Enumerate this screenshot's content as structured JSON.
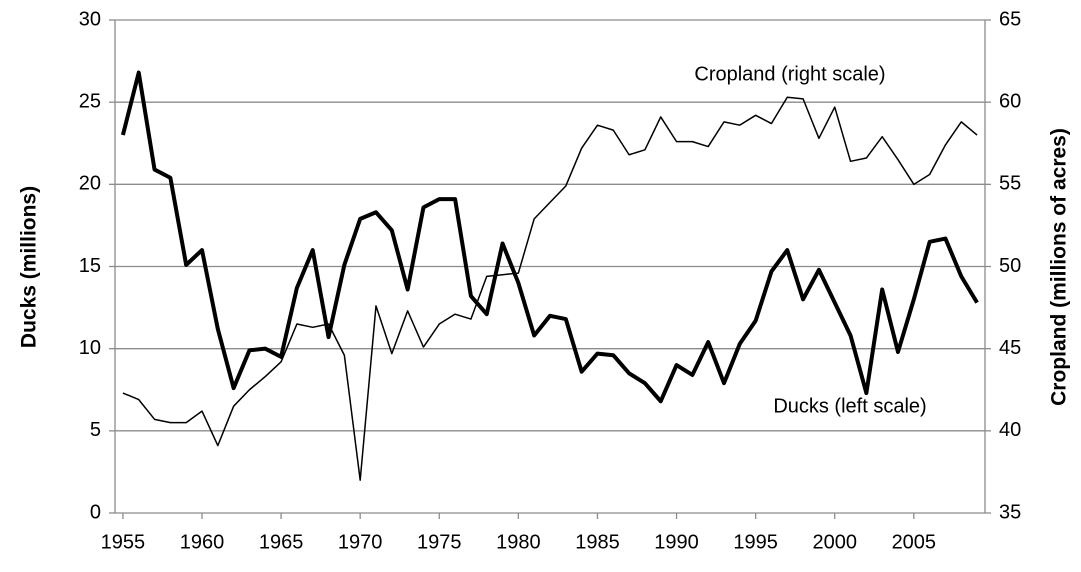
{
  "chart_data": {
    "type": "line",
    "y_label": "Ducks (millions)",
    "y2_label": "Cropland (millions of acres)",
    "annotations": [
      "Cropland (right scale)",
      "Ducks (left scale)"
    ],
    "x": [
      1955,
      1956,
      1957,
      1958,
      1959,
      1960,
      1961,
      1962,
      1963,
      1964,
      1965,
      1966,
      1967,
      1968,
      1969,
      1970,
      1971,
      1972,
      1973,
      1974,
      1975,
      1976,
      1977,
      1978,
      1979,
      1980,
      1981,
      1982,
      1983,
      1984,
      1985,
      1986,
      1987,
      1988,
      1989,
      1990,
      1991,
      1992,
      1993,
      1994,
      1995,
      1996,
      1997,
      1998,
      1999,
      2000,
      2001,
      2002,
      2003,
      2004,
      2005,
      2006,
      2007,
      2008,
      2009
    ],
    "xlim": [
      1954.5,
      2009.5
    ],
    "xticks": [
      1955,
      1960,
      1965,
      1970,
      1975,
      1980,
      1985,
      1990,
      1995,
      2000,
      2005
    ],
    "ylim": [
      0,
      30
    ],
    "yticks": [
      0,
      5,
      10,
      15,
      20,
      25,
      30
    ],
    "y2lim": [
      35,
      65
    ],
    "y2ticks": [
      35,
      40,
      45,
      50,
      55,
      60,
      65
    ],
    "grid": true,
    "series": [
      {
        "name": "Ducks",
        "color": "#000000",
        "values": [
          23.0,
          26.8,
          20.9,
          20.4,
          15.1,
          16.0,
          11.2,
          7.6,
          9.9,
          10.0,
          9.5,
          13.7,
          16.0,
          10.7,
          15.1,
          17.9,
          18.3,
          17.2,
          13.6,
          18.6,
          19.1,
          19.1,
          13.2,
          12.1,
          16.4,
          14.0,
          10.8,
          12.0,
          11.8,
          8.6,
          9.7,
          9.6,
          8.5,
          7.9,
          6.8,
          9.0,
          8.4,
          10.4,
          7.9,
          10.3,
          11.7,
          14.7,
          16.0,
          13.0,
          14.8,
          12.8,
          10.8,
          7.3,
          13.6,
          9.8,
          13.0,
          16.5,
          16.7,
          14.4,
          12.8
        ]
      },
      {
        "name": "Cropland",
        "color": "#000000",
        "axis": "y2",
        "values": [
          42.3,
          41.9,
          40.7,
          40.5,
          40.5,
          41.2,
          39.1,
          41.5,
          42.5,
          43.3,
          44.2,
          46.5,
          46.3,
          46.5,
          44.6,
          37.0,
          47.6,
          44.7,
          47.3,
          45.1,
          46.5,
          47.1,
          46.8,
          49.4,
          49.5,
          49.6,
          52.9,
          53.9,
          54.9,
          57.2,
          58.6,
          58.3,
          56.8,
          57.1,
          59.1,
          57.6,
          57.6,
          57.3,
          58.8,
          58.6,
          59.2,
          58.7,
          60.3,
          60.2,
          57.8,
          59.7,
          56.4,
          56.6,
          57.9,
          56.5,
          55.0,
          55.6,
          57.4,
          58.8,
          58.0
        ]
      }
    ]
  }
}
